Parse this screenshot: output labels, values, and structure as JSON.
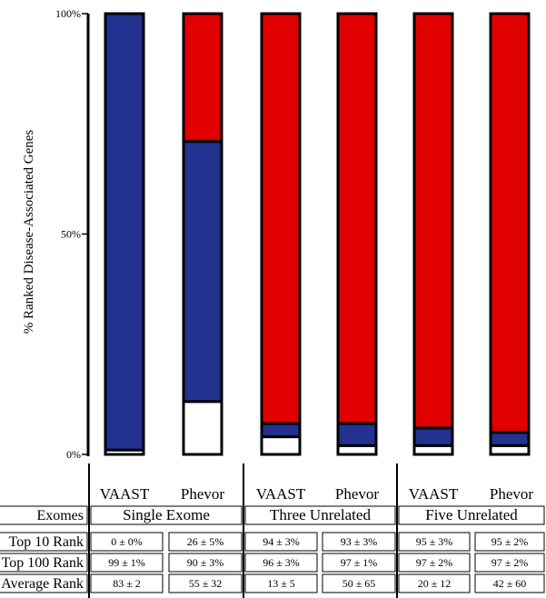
{
  "chart_data": {
    "type": "bar",
    "stacked": true,
    "ylabel": "% Ranked Disease-Associated Genes",
    "ylim": [
      0,
      100
    ],
    "y_ticks": [
      "0%",
      "50%",
      "100%"
    ],
    "categories": [
      "VAAST",
      "Phevor",
      "VAAST",
      "Phevor",
      "VAAST",
      "Phevor"
    ],
    "groups": [
      "Single Exome",
      "Three Unrelated",
      "Five Unrelated"
    ],
    "series": [
      {
        "color": "#ffffff",
        "values": [
          1,
          12,
          4,
          2,
          2,
          2
        ]
      },
      {
        "color": "#23318f",
        "values": [
          99,
          59,
          3,
          5,
          4,
          3
        ]
      },
      {
        "color": "#e00000",
        "values": [
          0,
          29,
          93,
          93,
          94,
          95
        ]
      }
    ],
    "table": {
      "header_label": "Exomes",
      "rows": [
        {
          "label": "Top 10 Rank",
          "values": [
            "0 ± 0%",
            "26 ± 5%",
            "94 ± 3%",
            "93 ± 3%",
            "95 ± 3%",
            "95 ± 2%"
          ]
        },
        {
          "label": "Top 100 Rank",
          "values": [
            "99 ± 1%",
            "90 ± 3%",
            "96 ± 3%",
            "97 ± 1%",
            "97 ± 2%",
            "97 ± 2%"
          ]
        },
        {
          "label": "Average Rank",
          "values": [
            "83 ± 2",
            "55 ± 32",
            "13 ± 5",
            "50 ± 65",
            "20 ± 12",
            "42 ± 60"
          ]
        }
      ]
    }
  }
}
